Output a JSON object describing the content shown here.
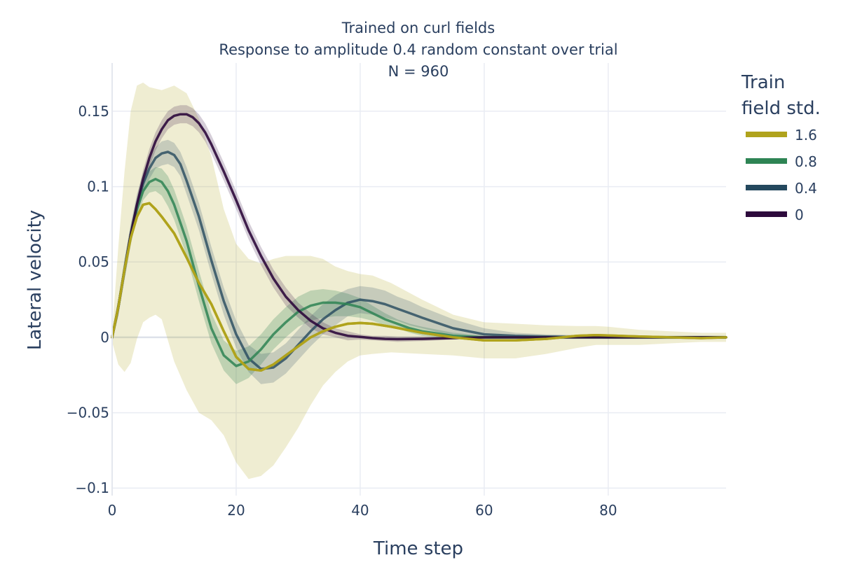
{
  "chart_data": {
    "type": "line",
    "title_lines": [
      "Trained on curl fields",
      "Response to amplitude 0.4 random constant over trial",
      "N = 960"
    ],
    "xlabel": "Time step",
    "ylabel": "Lateral velocity",
    "xlim": [
      0,
      99
    ],
    "ylim": [
      -0.105,
      0.182
    ],
    "xticks": [
      0,
      20,
      40,
      60,
      80
    ],
    "xtick_labels": [
      "0",
      "20",
      "40",
      "60",
      "80"
    ],
    "yticks": [
      -0.1,
      -0.05,
      0,
      0.05,
      0.1,
      0.15
    ],
    "ytick_labels": [
      "−0.1",
      "−0.05",
      "0",
      "0.05",
      "0.1",
      "0.15"
    ],
    "grid": true,
    "legend": {
      "title_lines": [
        "Train",
        "field std."
      ],
      "placement": "right"
    },
    "series": [
      {
        "name": "1.6",
        "color": "#b0a31c",
        "band_opacity": 0.2,
        "line_opacity": 1.0,
        "x": [
          0,
          1,
          2,
          3,
          4,
          5,
          6,
          7,
          8,
          10,
          12,
          14,
          16,
          18,
          20,
          22,
          24,
          26,
          28,
          30,
          32,
          34,
          36,
          38,
          40,
          42,
          45,
          50,
          55,
          60,
          65,
          70,
          75,
          78,
          80,
          85,
          90,
          95,
          99
        ],
        "y": [
          0,
          0.02,
          0.045,
          0.066,
          0.08,
          0.088,
          0.089,
          0.085,
          0.08,
          0.069,
          0.053,
          0.036,
          0.022,
          0.004,
          -0.013,
          -0.021,
          -0.022,
          -0.018,
          -0.012,
          -0.006,
          0,
          0.004,
          0.007,
          0.009,
          0.0095,
          0.009,
          0.007,
          0.003,
          0,
          -0.002,
          -0.002,
          -0.001,
          0.001,
          0.0015,
          0.0012,
          0.0005,
          0,
          -0.0005,
          0
        ],
        "upper": [
          0.003,
          0.06,
          0.11,
          0.15,
          0.167,
          0.169,
          0.166,
          0.165,
          0.164,
          0.167,
          0.162,
          0.145,
          0.12,
          0.085,
          0.062,
          0.052,
          0.049,
          0.052,
          0.054,
          0.054,
          0.054,
          0.052,
          0.047,
          0.044,
          0.042,
          0.041,
          0.036,
          0.025,
          0.015,
          0.01,
          0.009,
          0.008,
          0.0075,
          0.0075,
          0.007,
          0.005,
          0.004,
          0.003,
          0.003
        ],
        "lower": [
          -0.003,
          -0.018,
          -0.023,
          -0.017,
          -0.001,
          0.01,
          0.013,
          0.015,
          0.012,
          -0.016,
          -0.035,
          -0.05,
          -0.055,
          -0.065,
          -0.083,
          -0.094,
          -0.092,
          -0.085,
          -0.073,
          -0.06,
          -0.045,
          -0.032,
          -0.023,
          -0.016,
          -0.012,
          -0.011,
          -0.01,
          -0.011,
          -0.012,
          -0.014,
          -0.014,
          -0.011,
          -0.007,
          -0.005,
          -0.005,
          -0.005,
          -0.004,
          -0.003,
          -0.003
        ]
      },
      {
        "name": "0.8",
        "color": "#2e8454",
        "band_opacity": 0.25,
        "line_opacity": 0.85,
        "x": [
          0,
          1,
          2,
          3,
          4,
          5,
          6,
          7,
          8,
          9,
          10,
          12,
          14,
          16,
          18,
          20,
          22,
          24,
          26,
          28,
          30,
          32,
          34,
          36,
          38,
          40,
          42,
          44,
          46,
          48,
          50,
          55,
          60,
          70,
          80,
          90,
          99
        ],
        "y": [
          0,
          0.02,
          0.045,
          0.068,
          0.085,
          0.097,
          0.103,
          0.105,
          0.103,
          0.097,
          0.088,
          0.064,
          0.034,
          0.006,
          -0.012,
          -0.019,
          -0.016,
          -0.008,
          0.002,
          0.01,
          0.017,
          0.021,
          0.023,
          0.023,
          0.022,
          0.02,
          0.016,
          0.012,
          0.009,
          0.006,
          0.004,
          0.001,
          0,
          0,
          0,
          0,
          0
        ],
        "upper": [
          0.004,
          0.025,
          0.051,
          0.074,
          0.091,
          0.103,
          0.11,
          0.113,
          0.112,
          0.107,
          0.098,
          0.074,
          0.044,
          0.016,
          -0.002,
          -0.009,
          -0.006,
          0.002,
          0.012,
          0.02,
          0.027,
          0.031,
          0.032,
          0.031,
          0.029,
          0.026,
          0.021,
          0.016,
          0.012,
          0.009,
          0.007,
          0.003,
          0.001,
          0.001,
          0.001,
          0.001,
          0.001
        ],
        "lower": [
          -0.004,
          0.015,
          0.039,
          0.062,
          0.079,
          0.091,
          0.096,
          0.097,
          0.094,
          0.087,
          0.078,
          0.054,
          0.024,
          -0.004,
          -0.022,
          -0.031,
          -0.027,
          -0.018,
          -0.008,
          0,
          0.007,
          0.011,
          0.013,
          0.014,
          0.014,
          0.013,
          0.011,
          0.008,
          0.006,
          0.003,
          0.001,
          -0.001,
          -0.001,
          -0.001,
          -0.001,
          -0.001,
          -0.001
        ]
      },
      {
        "name": "0.4",
        "color": "#24485e",
        "band_opacity": 0.2,
        "line_opacity": 0.8,
        "x": [
          0,
          1,
          2,
          3,
          4,
          5,
          6,
          7,
          8,
          9,
          10,
          11,
          12,
          14,
          16,
          18,
          20,
          22,
          24,
          26,
          28,
          30,
          32,
          34,
          36,
          38,
          40,
          42,
          44,
          46,
          48,
          50,
          55,
          60,
          65,
          70,
          80,
          90,
          99
        ],
        "y": [
          0,
          0.02,
          0.045,
          0.068,
          0.088,
          0.102,
          0.112,
          0.119,
          0.122,
          0.123,
          0.121,
          0.115,
          0.104,
          0.08,
          0.051,
          0.024,
          0.002,
          -0.014,
          -0.021,
          -0.02,
          -0.014,
          -0.005,
          0.004,
          0.012,
          0.018,
          0.023,
          0.025,
          0.024,
          0.022,
          0.019,
          0.016,
          0.013,
          0.006,
          0.002,
          0.001,
          0.0005,
          0,
          0,
          0
        ],
        "upper": [
          0.003,
          0.026,
          0.052,
          0.075,
          0.095,
          0.109,
          0.119,
          0.126,
          0.13,
          0.131,
          0.129,
          0.123,
          0.113,
          0.089,
          0.06,
          0.033,
          0.011,
          -0.005,
          -0.011,
          -0.01,
          -0.004,
          0.005,
          0.014,
          0.022,
          0.028,
          0.032,
          0.034,
          0.033,
          0.031,
          0.027,
          0.024,
          0.02,
          0.012,
          0.006,
          0.003,
          0.002,
          0.001,
          0.001,
          0.001
        ],
        "lower": [
          -0.003,
          0.014,
          0.038,
          0.061,
          0.081,
          0.095,
          0.105,
          0.112,
          0.114,
          0.115,
          0.113,
          0.107,
          0.095,
          0.071,
          0.042,
          0.015,
          -0.007,
          -0.023,
          -0.031,
          -0.03,
          -0.024,
          -0.015,
          -0.006,
          0.002,
          0.008,
          0.014,
          0.016,
          0.015,
          0.013,
          0.011,
          0.008,
          0.006,
          0.001,
          -0.002,
          -0.002,
          -0.001,
          -0.001,
          -0.001,
          -0.001
        ]
      },
      {
        "name": "0",
        "color": "#2d0a3c",
        "band_opacity": 0.2,
        "line_opacity": 0.9,
        "x": [
          0,
          1,
          2,
          3,
          4,
          5,
          6,
          7,
          8,
          9,
          10,
          11,
          12,
          13,
          14,
          15,
          16,
          18,
          20,
          22,
          24,
          26,
          28,
          30,
          32,
          34,
          36,
          38,
          40,
          42,
          44,
          46,
          50,
          55,
          60,
          70,
          80,
          90,
          99
        ],
        "y": [
          0,
          0.02,
          0.045,
          0.068,
          0.088,
          0.105,
          0.119,
          0.13,
          0.138,
          0.144,
          0.147,
          0.148,
          0.148,
          0.146,
          0.142,
          0.136,
          0.128,
          0.11,
          0.091,
          0.071,
          0.054,
          0.039,
          0.027,
          0.018,
          0.011,
          0.006,
          0.003,
          0.001,
          0.0003,
          -0.0005,
          -0.001,
          -0.0012,
          -0.001,
          -0.0005,
          0,
          0,
          0,
          0,
          0
        ],
        "upper": [
          0.003,
          0.025,
          0.05,
          0.073,
          0.093,
          0.111,
          0.125,
          0.136,
          0.144,
          0.15,
          0.153,
          0.154,
          0.154,
          0.152,
          0.148,
          0.142,
          0.134,
          0.116,
          0.097,
          0.077,
          0.06,
          0.045,
          0.033,
          0.023,
          0.016,
          0.01,
          0.006,
          0.004,
          0.002,
          0.001,
          0.001,
          0.0005,
          0.0005,
          0.0005,
          0.0005,
          0.0005,
          0.0005,
          0.0005,
          0.0005
        ],
        "lower": [
          -0.003,
          0.015,
          0.04,
          0.063,
          0.083,
          0.099,
          0.113,
          0.124,
          0.132,
          0.138,
          0.141,
          0.142,
          0.142,
          0.14,
          0.136,
          0.13,
          0.122,
          0.104,
          0.085,
          0.065,
          0.048,
          0.033,
          0.021,
          0.013,
          0.006,
          0.002,
          0,
          -0.002,
          -0.0015,
          -0.002,
          -0.0025,
          -0.003,
          -0.0025,
          -0.0015,
          -0.0005,
          -0.0005,
          -0.0005,
          -0.0005,
          -0.0005
        ]
      }
    ],
    "draw_order": [
      "1.6",
      "0.4",
      "0.8",
      "0",
      "1.6"
    ]
  }
}
